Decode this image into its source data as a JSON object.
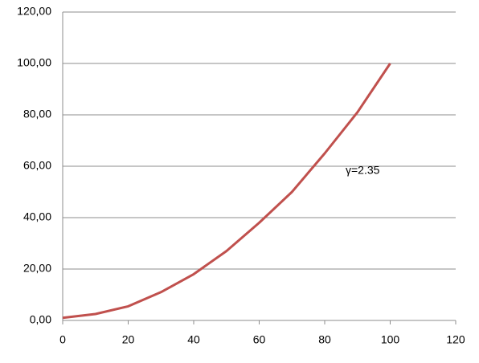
{
  "chart_data": {
    "type": "line",
    "x": [
      0,
      10,
      20,
      30,
      40,
      50,
      60,
      70,
      80,
      90,
      100
    ],
    "values": [
      1,
      2.5,
      5.5,
      11,
      18,
      27,
      38,
      50,
      65,
      81,
      100
    ],
    "color": "#c0504d",
    "xlim": [
      0,
      120
    ],
    "xticks": [
      0,
      20,
      40,
      60,
      80,
      100,
      120
    ],
    "ylim": [
      0,
      120
    ],
    "yticks": [
      {
        "value": 0,
        "label": "0,00"
      },
      {
        "value": 20,
        "label": "20,00"
      },
      {
        "value": 40,
        "label": "40,00"
      },
      {
        "value": 60,
        "label": "60,00"
      },
      {
        "value": 80,
        "label": "80,00"
      },
      {
        "value": 100,
        "label": "100,00"
      },
      {
        "value": 120,
        "label": "120,00"
      }
    ],
    "grid": true,
    "annotation": "γ=2.35"
  }
}
